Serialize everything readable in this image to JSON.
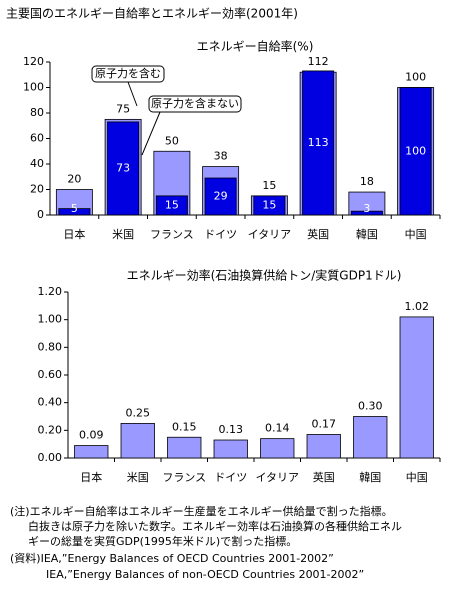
{
  "title": "主要国のエネルギー自給率とエネルギー効率(2001年)",
  "chart_data": [
    {
      "type": "bar",
      "title": "エネルギー自給率(%)",
      "categories": [
        "日本",
        "米国",
        "フランス",
        "ドイツ",
        "イタリア",
        "英国",
        "韓国",
        "中国"
      ],
      "series": [
        {
          "name": "原子力を含む",
          "color": "#9999ff",
          "values": [
            20,
            75,
            50,
            38,
            15,
            112,
            18,
            100
          ]
        },
        {
          "name": "原子力を含まない",
          "color": "#0000e0",
          "values": [
            5,
            73,
            15,
            29,
            15,
            113,
            3,
            100
          ]
        }
      ],
      "ylim": [
        0,
        120
      ],
      "yticks": [
        0,
        20,
        40,
        60,
        80,
        100,
        120
      ],
      "grid": false
    },
    {
      "type": "bar",
      "title": "エネルギー効率(石油換算供給トン/実質GDP1ドル)",
      "categories": [
        "日本",
        "米国",
        "フランス",
        "ドイツ",
        "イタリア",
        "英国",
        "韓国",
        "中国"
      ],
      "values": [
        0.09,
        0.25,
        0.15,
        0.13,
        0.14,
        0.17,
        0.3,
        1.02
      ],
      "value_labels": [
        "0.09",
        "0.25",
        "0.15",
        "0.13",
        "0.14",
        "0.17",
        "0.30",
        "1.02"
      ],
      "color": "#9999ff",
      "ylim": [
        0,
        1.2
      ],
      "yticks": [
        {
          "value": 0,
          "label": "0.00"
        },
        {
          "value": 0.2,
          "label": "0.20"
        },
        {
          "value": 0.4,
          "label": "0.40"
        },
        {
          "value": 0.6,
          "label": "0.60"
        },
        {
          "value": 0.8,
          "label": "0.80"
        },
        {
          "value": 1.0,
          "label": "1.00"
        },
        {
          "value": 1.2,
          "label": "1.20"
        }
      ],
      "grid": false
    }
  ],
  "notes": [
    "(注)エネルギー自給率はエネルギー生産量をエネルギー供給量で割った指標。",
    "白抜きは原子力を除いた数字。エネルギー効率は石油換算の各種供給エネル",
    "ギーの総量を実質GDP(1995年米ドル)で割った指標。",
    "(資料)IEA,”Energy Balances of OECD Countries 2001-2002”",
    "IEA,”Energy Balances of non-OECD Countries 2001-2002”"
  ]
}
